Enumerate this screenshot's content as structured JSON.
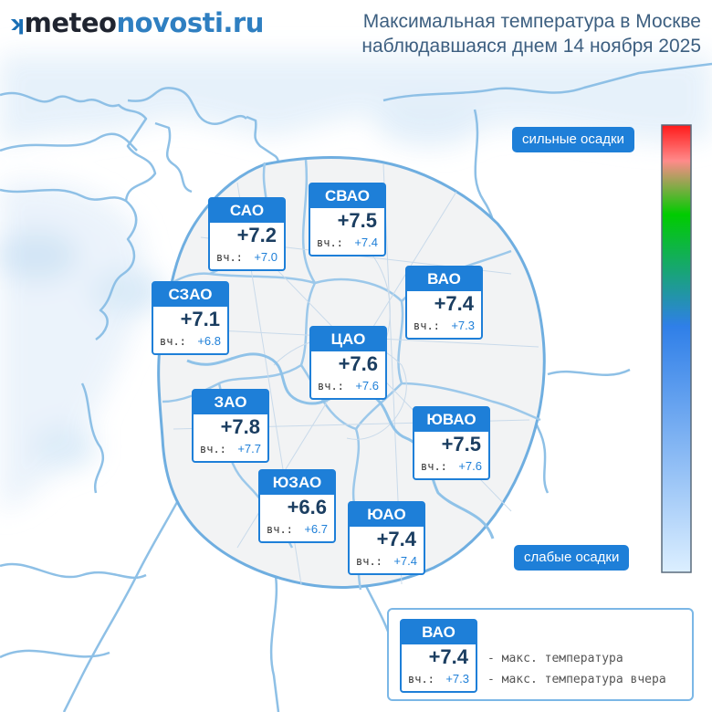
{
  "logo": {
    "part1": "meteo",
    "part2": "novosti.ru",
    "mark": "ʞ"
  },
  "title": {
    "line1": "Максимальная температура в Москве",
    "line2": "наблюдавшаяся днем 14 ноября 2025"
  },
  "scale": {
    "top_label": "сильные осадки",
    "bottom_label": "слабые осадки",
    "colors": [
      "#ff1a1a",
      "#ff8a8a",
      "#00cc00",
      "#2f7fe8",
      "#dcefff"
    ]
  },
  "districts": [
    {
      "id": "sao",
      "name": "САО",
      "temp": "+7.2",
      "yesterday_label": "вч.:",
      "yesterday": "+7.0"
    },
    {
      "id": "svao",
      "name": "СВАО",
      "temp": "+7.5",
      "yesterday_label": "вч.:",
      "yesterday": "+7.4"
    },
    {
      "id": "vao",
      "name": "ВАО",
      "temp": "+7.4",
      "yesterday_label": "вч.:",
      "yesterday": "+7.3"
    },
    {
      "id": "szao",
      "name": "СЗАО",
      "temp": "+7.1",
      "yesterday_label": "вч.:",
      "yesterday": "+6.8"
    },
    {
      "id": "cao",
      "name": "ЦАО",
      "temp": "+7.6",
      "yesterday_label": "вч.:",
      "yesterday": "+7.6"
    },
    {
      "id": "zao",
      "name": "ЗАО",
      "temp": "+7.8",
      "yesterday_label": "вч.:",
      "yesterday": "+7.7"
    },
    {
      "id": "yuvao",
      "name": "ЮВАО",
      "temp": "+7.5",
      "yesterday_label": "вч.:",
      "yesterday": "+7.6"
    },
    {
      "id": "yuzao",
      "name": "ЮЗАО",
      "temp": "+6.6",
      "yesterday_label": "вч.:",
      "yesterday": "+6.7"
    },
    {
      "id": "yuao",
      "name": "ЮАО",
      "temp": "+7.4",
      "yesterday_label": "вч.:",
      "yesterday": "+7.4"
    }
  ],
  "legend": {
    "sample": {
      "name": "ВАО",
      "temp": "+7.4",
      "yesterday_label": "вч.:",
      "yesterday": "+7.3"
    },
    "line1": "- макс. температура",
    "line2": "- макс. температура вчера"
  }
}
